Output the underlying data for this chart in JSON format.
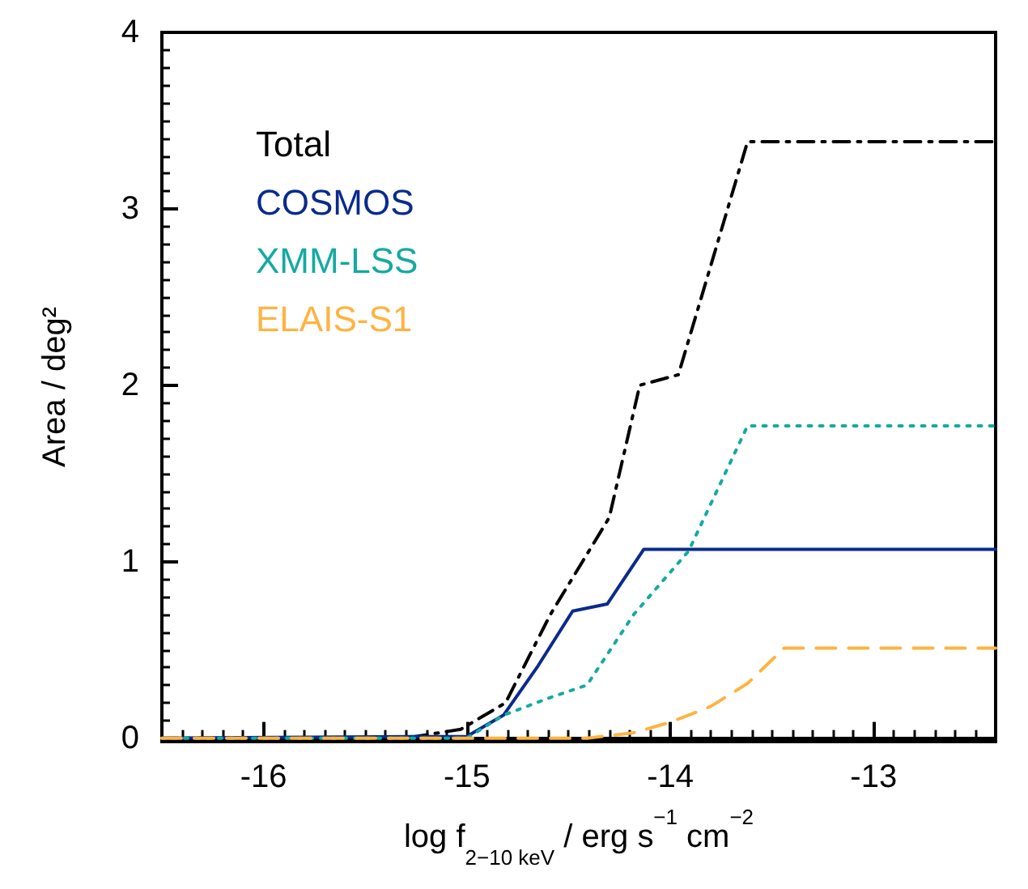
{
  "chart_data": {
    "type": "line",
    "xlabel": "log f$_{2−10 keV}$ / erg s$^{−1}$ cm$^{−2}$",
    "ylabel": "Area / deg²",
    "xlim": [
      -16.5,
      -12.4
    ],
    "ylim": [
      -0.02,
      4
    ],
    "xticks": [
      -16,
      -15,
      -14,
      -13
    ],
    "yticks": [
      0,
      1,
      2,
      3,
      4
    ],
    "grid": false,
    "legend": "top left",
    "marker": "none",
    "series": [
      {
        "name": "Total",
        "color": "#000000",
        "line_style": "dashdot",
        "x": [
          -16.5,
          -15.3,
          -15.03,
          -14.81,
          -14.59,
          -14.3,
          -14.15,
          -13.96,
          -13.62,
          -12.4
        ],
        "values": [
          0,
          0,
          0.05,
          0.2,
          0.7,
          1.25,
          2.0,
          2.06,
          3.38,
          3.38
        ]
      },
      {
        "name": "COSMOS",
        "color": "#0a2b8c",
        "line_style": "solid",
        "x": [
          -16.5,
          -15.0,
          -14.82,
          -14.65,
          -14.48,
          -14.31,
          -14.13,
          -12.4
        ],
        "values": [
          0,
          0.01,
          0.13,
          0.41,
          0.72,
          0.76,
          1.07,
          1.07
        ]
      },
      {
        "name": "XMM-LSS",
        "color": "#14aaa0",
        "line_style": "dotted",
        "x": [
          -16.5,
          -15.0,
          -14.82,
          -14.59,
          -14.41,
          -14.18,
          -13.91,
          -13.62,
          -12.4
        ],
        "values": [
          0,
          0,
          0.13,
          0.23,
          0.3,
          0.7,
          1.06,
          1.77,
          1.77
        ]
      },
      {
        "name": "ELAIS-S1",
        "color": "#ffb340",
        "line_style": "dashed",
        "x": [
          -16.5,
          -14.41,
          -14.18,
          -14.0,
          -13.8,
          -13.62,
          -13.44,
          -12.4
        ],
        "values": [
          0,
          0,
          0.03,
          0.09,
          0.18,
          0.31,
          0.51,
          0.51
        ]
      }
    ]
  }
}
